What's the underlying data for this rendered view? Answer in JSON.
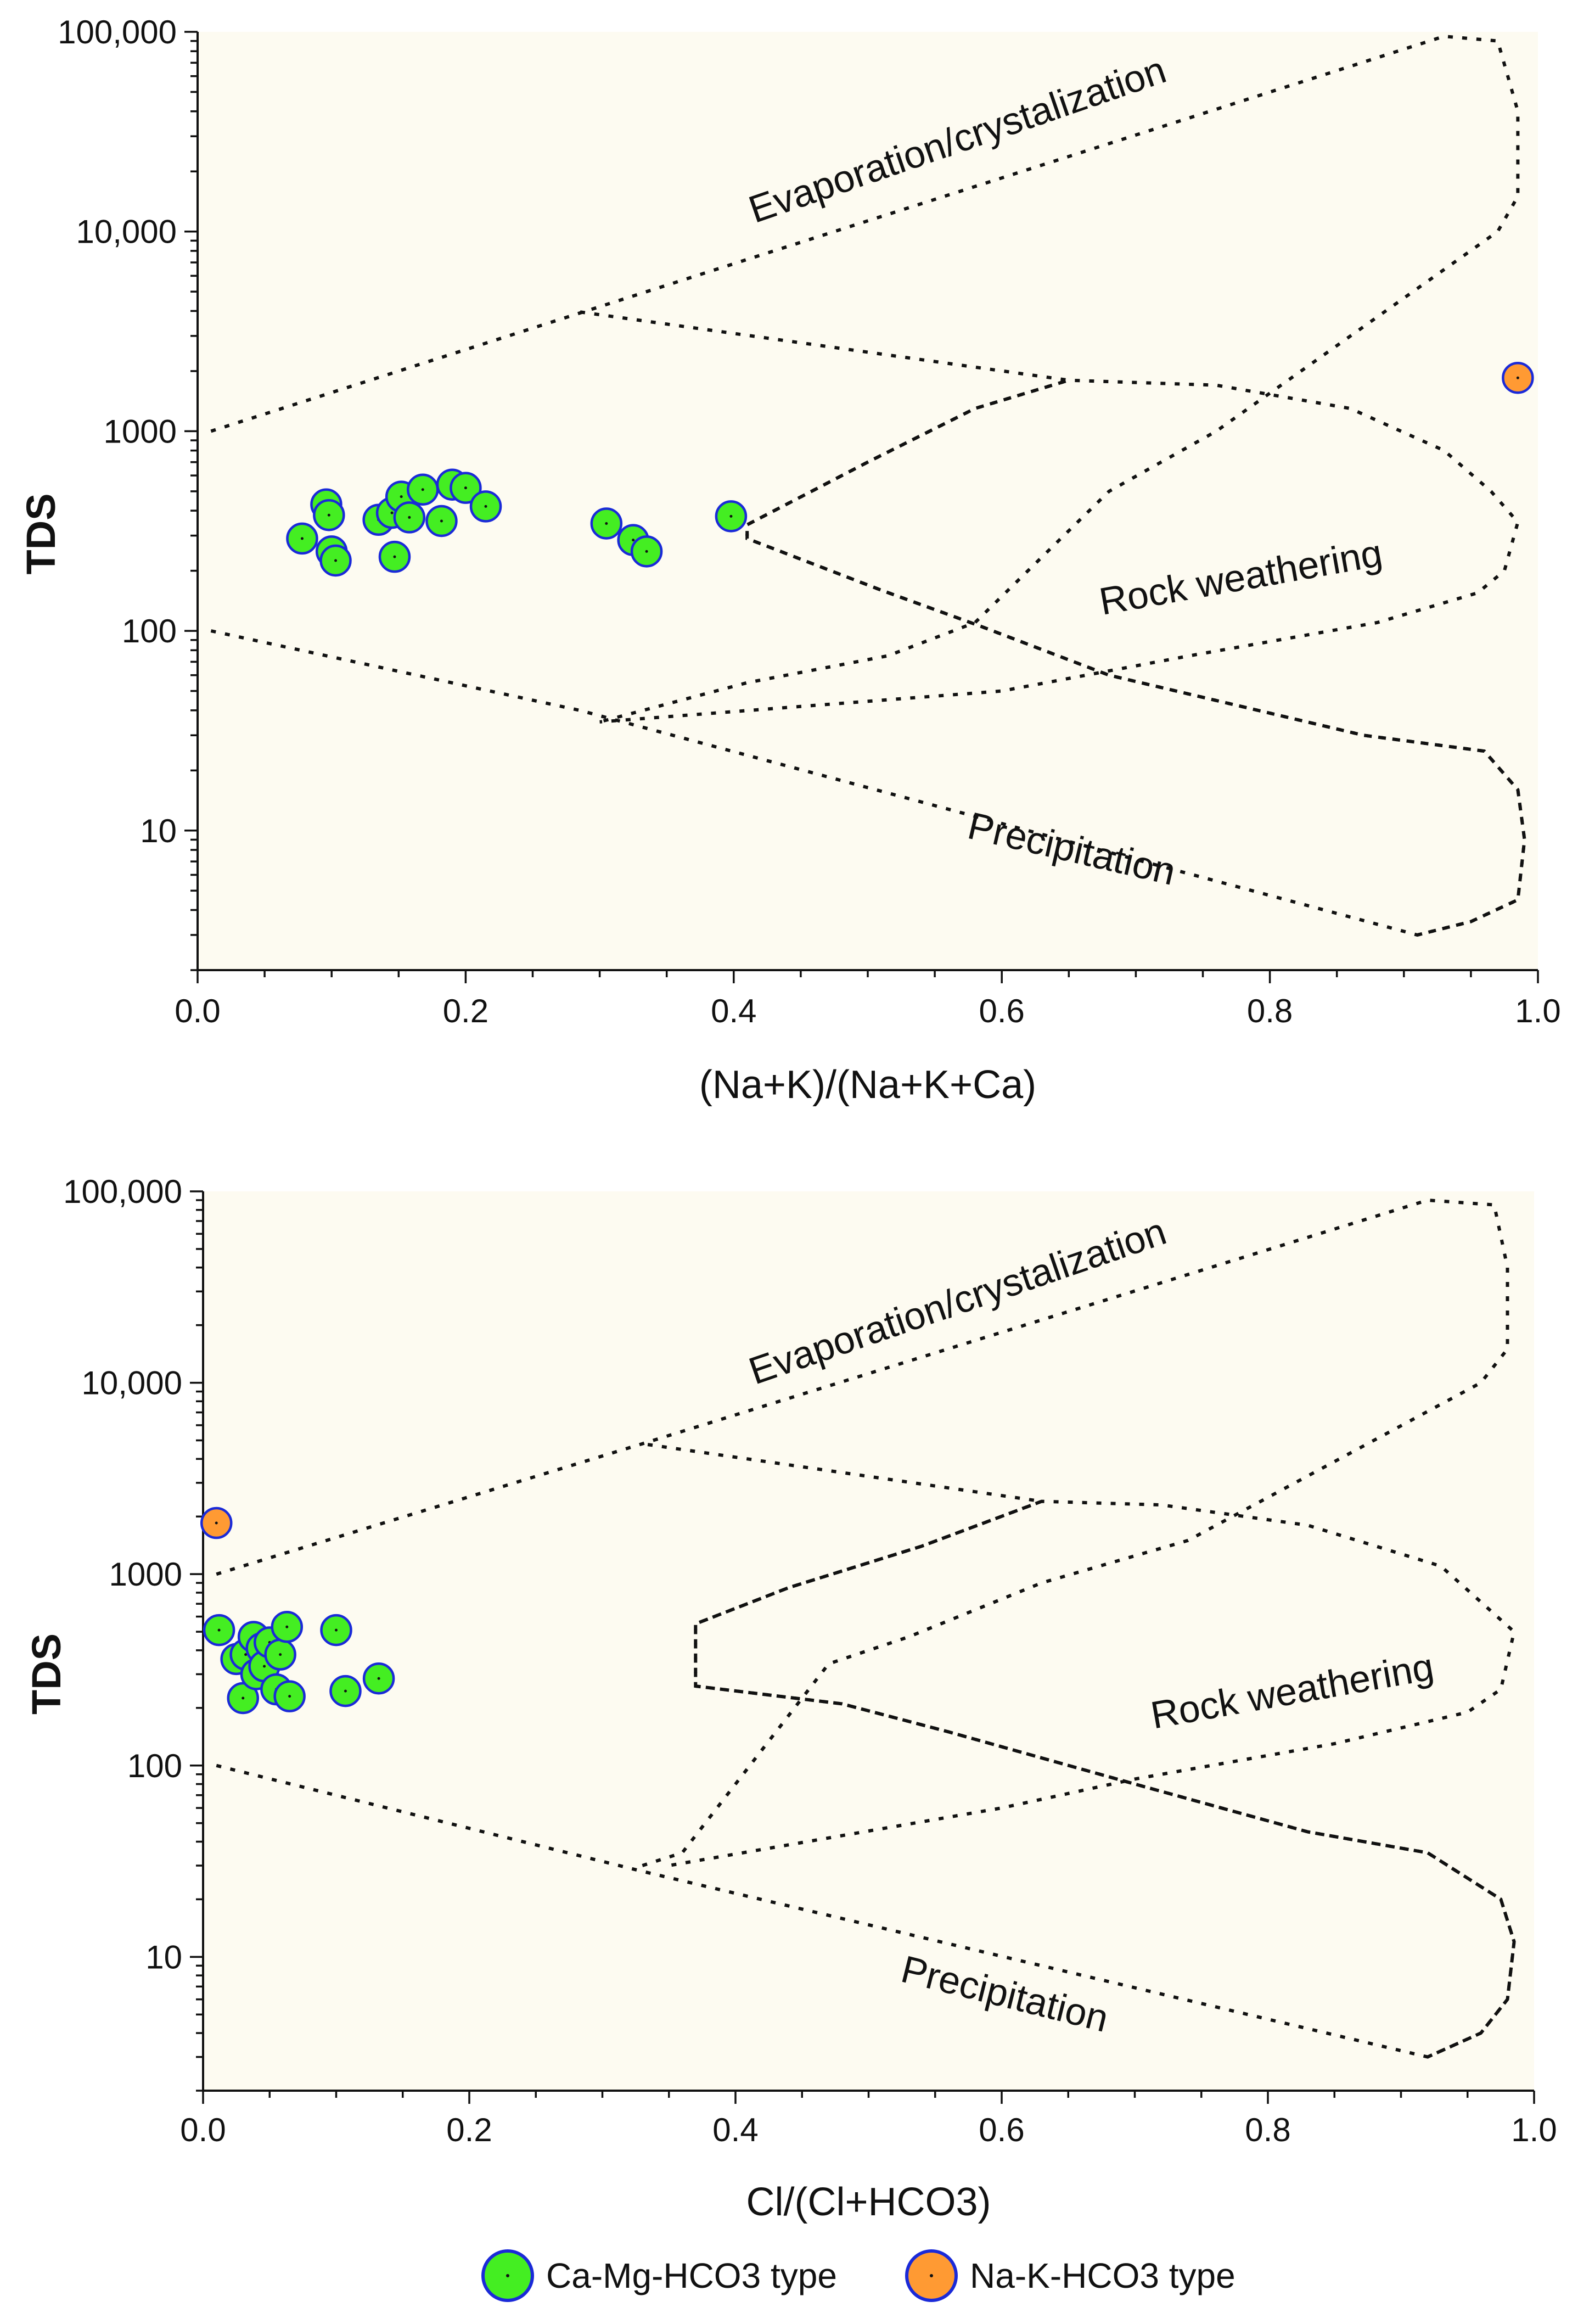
{
  "colors": {
    "background": "#fdfbf1",
    "ca_mg": "#44ee22",
    "na_k": "#ff9a33",
    "marker_edge": "#1a2ad8",
    "ink": "#111111"
  },
  "legend": {
    "items": [
      {
        "label": "Ca-Mg-HCO3 type",
        "color": "#44ee22"
      },
      {
        "label": "Na-K-HCO3 type",
        "color": "#ff9a33"
      }
    ]
  },
  "chart_data": [
    {
      "type": "scatter",
      "title": "",
      "xlabel": "(Na+K)/(Na+K+Ca)",
      "ylabel": "TDS",
      "xlim": [
        0,
        1
      ],
      "ylim": [
        2,
        100000
      ],
      "yscale": "log",
      "xticks": [
        "0.0",
        "0.2",
        "0.4",
        "0.6",
        "0.8",
        "1.0"
      ],
      "yticks": [
        {
          "value": 10,
          "label": "10"
        },
        {
          "value": 100,
          "label": "100"
        },
        {
          "value": 1000,
          "label": "1000"
        },
        {
          "value": 10000,
          "label": "10,000"
        },
        {
          "value": 100000,
          "label": "100,000"
        }
      ],
      "annotations": [
        {
          "text": "Evaporation/crystalization",
          "x": 0.57,
          "y": 25000,
          "angle": -19
        },
        {
          "text": "Rock weathering",
          "x": 0.78,
          "y": 160,
          "angle": -10
        },
        {
          "text": "Precipitation",
          "x": 0.65,
          "y": 7,
          "angle": 13
        }
      ],
      "envelopes": {
        "upper": [
          [
            0.01,
            1000
          ],
          [
            0.29,
            4000
          ],
          [
            0.93,
            95000
          ],
          [
            0.97,
            90000
          ],
          [
            0.985,
            40000
          ],
          [
            0.985,
            15000
          ],
          [
            0.97,
            10000
          ],
          [
            0.76,
            1000
          ],
          [
            0.68,
            500
          ],
          [
            0.58,
            110
          ],
          [
            0.515,
            75
          ],
          [
            0.41,
            55
          ],
          [
            0.3,
            35
          ]
        ],
        "lower": [
          [
            0.01,
            100
          ],
          [
            0.285,
            40
          ],
          [
            0.91,
            3
          ],
          [
            0.95,
            3.5
          ],
          [
            0.985,
            4.5
          ],
          [
            0.99,
            9
          ],
          [
            0.985,
            16
          ],
          [
            0.96,
            25
          ],
          [
            0.87,
            30
          ],
          [
            0.68,
            60
          ],
          [
            0.585,
            105
          ],
          [
            0.51,
            160
          ],
          [
            0.41,
            290
          ],
          [
            0.41,
            340
          ],
          [
            0.5,
            700
          ],
          [
            0.58,
            1300
          ],
          [
            0.65,
            1800
          ],
          [
            0.28,
            4000
          ]
        ],
        "crystal": [
          [
            0.91,
            3
          ],
          [
            0.95,
            3.5
          ],
          [
            0.985,
            4.5
          ],
          [
            0.99,
            9
          ],
          [
            0.985,
            16
          ],
          [
            0.96,
            25
          ],
          [
            0.87,
            30
          ],
          [
            0.68,
            60
          ],
          [
            0.585,
            105
          ],
          [
            0.51,
            160
          ],
          [
            0.41,
            290
          ],
          [
            0.41,
            340
          ],
          [
            0.5,
            700
          ],
          [
            0.58,
            1300
          ],
          [
            0.65,
            1800
          ],
          [
            0.76,
            1700
          ],
          [
            0.86,
            1300
          ],
          [
            0.93,
            800
          ],
          [
            0.965,
            500
          ],
          [
            0.985,
            350
          ],
          [
            0.975,
            200
          ],
          [
            0.955,
            155
          ],
          [
            0.88,
            110
          ],
          [
            0.74,
            75
          ],
          [
            0.6,
            50
          ],
          [
            0.3,
            35
          ]
        ]
      },
      "series": [
        {
          "name": "Ca-Mg-HCO3 type",
          "color": "#44ee22",
          "points": [
            [
              0.078,
              290
            ],
            [
              0.096,
              430
            ],
            [
              0.098,
              380
            ],
            [
              0.1,
              250
            ],
            [
              0.103,
              225
            ],
            [
              0.135,
              360
            ],
            [
              0.145,
              390
            ],
            [
              0.147,
              235
            ],
            [
              0.152,
              470
            ],
            [
              0.158,
              370
            ],
            [
              0.168,
              510
            ],
            [
              0.182,
              355
            ],
            [
              0.19,
              540
            ],
            [
              0.2,
              520
            ],
            [
              0.215,
              420
            ],
            [
              0.305,
              345
            ],
            [
              0.325,
              285
            ],
            [
              0.335,
              250
            ],
            [
              0.398,
              375
            ]
          ]
        },
        {
          "name": "Na-K-HCO3 type",
          "color": "#ff9a33",
          "points": [
            [
              0.985,
              1850
            ]
          ]
        }
      ]
    },
    {
      "type": "scatter",
      "title": "",
      "xlabel": "Cl/(Cl+HCO3)",
      "ylabel": "TDS",
      "xlim": [
        0,
        1
      ],
      "ylim": [
        2,
        100000
      ],
      "yscale": "log",
      "xticks": [
        "0.0",
        "0.2",
        "0.4",
        "0.6",
        "0.8",
        "1.0"
      ],
      "yticks": [
        {
          "value": 10,
          "label": "10"
        },
        {
          "value": 100,
          "label": "100"
        },
        {
          "value": 1000,
          "label": "1000"
        },
        {
          "value": 10000,
          "label": "10,000"
        },
        {
          "value": 100000,
          "label": "100,000"
        }
      ],
      "annotations": [
        {
          "text": "Evaporation/crystalization",
          "x": 0.57,
          "y": 23000,
          "angle": -19
        },
        {
          "text": "Rock weathering",
          "x": 0.82,
          "y": 210,
          "angle": -10
        },
        {
          "text": "Precipitation",
          "x": 0.6,
          "y": 5.5,
          "angle": 14
        }
      ],
      "envelopes": {
        "upper": [
          [
            0.01,
            1000
          ],
          [
            0.33,
            4800
          ],
          [
            0.92,
            90000
          ],
          [
            0.97,
            85000
          ],
          [
            0.98,
            40000
          ],
          [
            0.98,
            15000
          ],
          [
            0.96,
            10000
          ],
          [
            0.74,
            1500
          ],
          [
            0.63,
            900
          ],
          [
            0.53,
            470
          ],
          [
            0.47,
            340
          ],
          [
            0.36,
            35
          ],
          [
            0.33,
            30
          ]
        ],
        "lower": [
          [
            0.01,
            100
          ],
          [
            0.33,
            28
          ],
          [
            0.92,
            3
          ],
          [
            0.96,
            4
          ],
          [
            0.98,
            6
          ],
          [
            0.985,
            12
          ],
          [
            0.975,
            20
          ],
          [
            0.92,
            35
          ],
          [
            0.83,
            45
          ],
          [
            0.7,
            80
          ],
          [
            0.56,
            150
          ],
          [
            0.48,
            210
          ],
          [
            0.37,
            260
          ],
          [
            0.37,
            550
          ],
          [
            0.44,
            850
          ],
          [
            0.54,
            1400
          ],
          [
            0.63,
            2400
          ],
          [
            0.33,
            4800
          ]
        ],
        "crystal": [
          [
            0.92,
            3
          ],
          [
            0.96,
            4
          ],
          [
            0.98,
            6
          ],
          [
            0.985,
            12
          ],
          [
            0.975,
            20
          ],
          [
            0.92,
            35
          ],
          [
            0.83,
            45
          ],
          [
            0.7,
            80
          ],
          [
            0.56,
            150
          ],
          [
            0.48,
            210
          ],
          [
            0.37,
            260
          ],
          [
            0.37,
            550
          ],
          [
            0.44,
            850
          ],
          [
            0.54,
            1400
          ],
          [
            0.63,
            2400
          ],
          [
            0.72,
            2300
          ],
          [
            0.83,
            1800
          ],
          [
            0.93,
            1100
          ],
          [
            0.985,
            500
          ],
          [
            0.975,
            250
          ],
          [
            0.95,
            190
          ],
          [
            0.85,
            130
          ],
          [
            0.7,
            85
          ],
          [
            0.6,
            60
          ],
          [
            0.35,
            30
          ]
        ]
      },
      "series": [
        {
          "name": "Ca-Mg-HCO3 type",
          "color": "#44ee22",
          "points": [
            [
              0.012,
              510
            ],
            [
              0.025,
              360
            ],
            [
              0.03,
              225
            ],
            [
              0.032,
              380
            ],
            [
              0.038,
              470
            ],
            [
              0.04,
              300
            ],
            [
              0.044,
              410
            ],
            [
              0.046,
              330
            ],
            [
              0.05,
              440
            ],
            [
              0.055,
              250
            ],
            [
              0.058,
              380
            ],
            [
              0.063,
              530
            ],
            [
              0.065,
              230
            ],
            [
              0.1,
              510
            ],
            [
              0.107,
              245
            ],
            [
              0.132,
              285
            ]
          ]
        },
        {
          "name": "Na-K-HCO3 type",
          "color": "#ff9a33",
          "points": [
            [
              0.01,
              1850
            ]
          ]
        }
      ]
    }
  ]
}
